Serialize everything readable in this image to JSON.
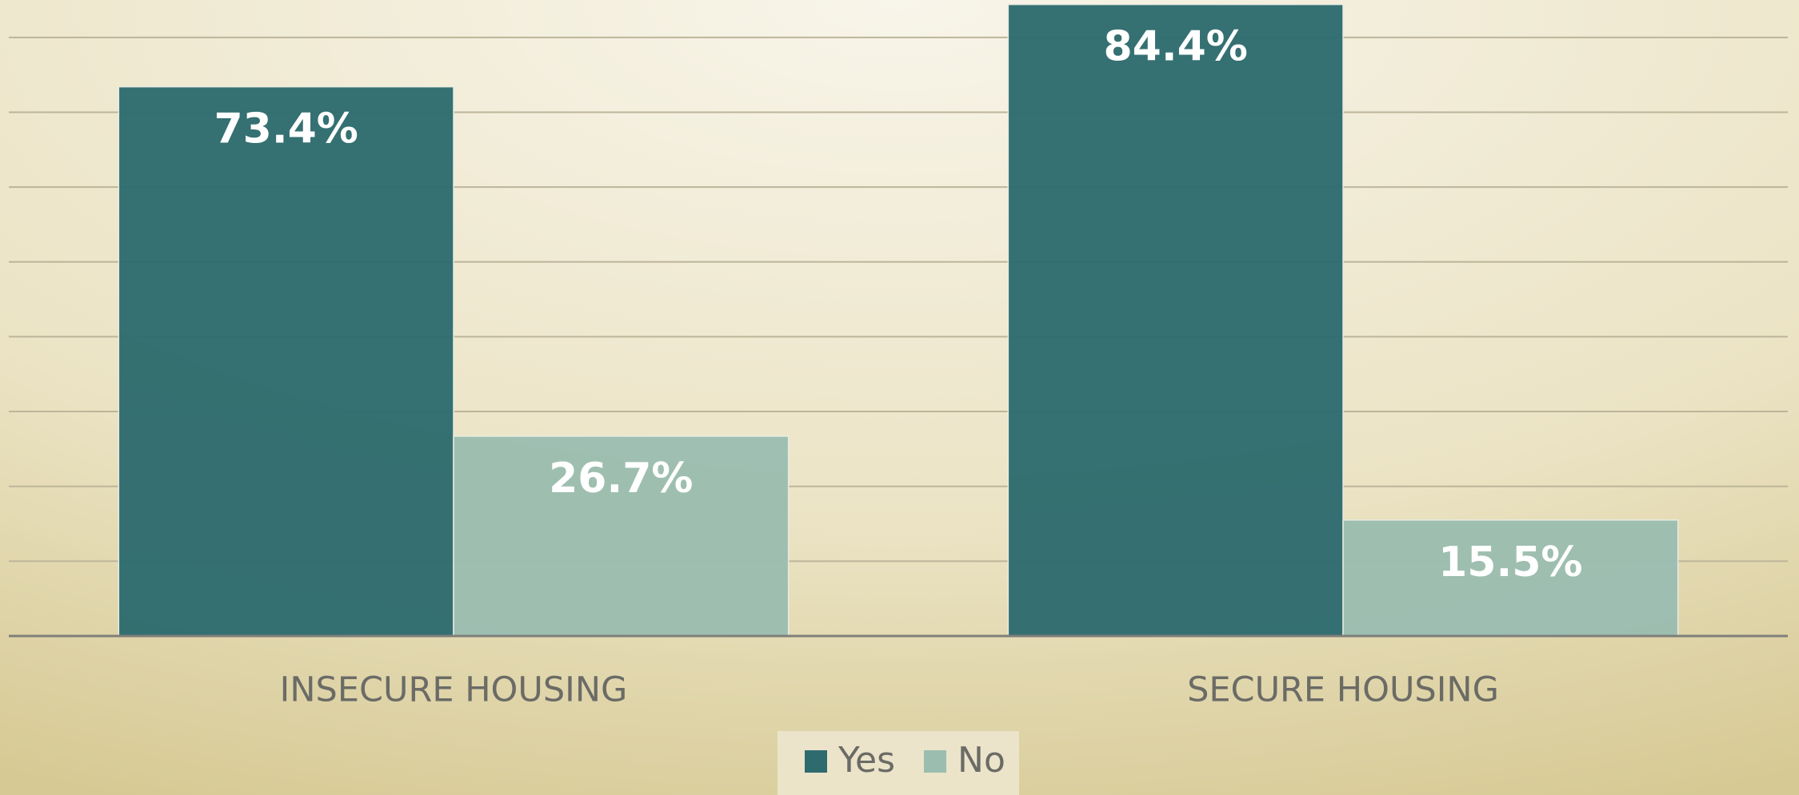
{
  "chart_data": {
    "type": "bar",
    "categories": [
      "INSECURE HOUSING",
      "SECURE HOUSING"
    ],
    "series": [
      {
        "name": "Yes",
        "color": "#2e6b6e",
        "values": [
          73.4,
          84.4
        ],
        "value_labels": [
          "73.4%",
          "84.4%"
        ]
      },
      {
        "name": "No",
        "color": "#9bbdb0",
        "values": [
          26.7,
          15.5
        ],
        "value_labels": [
          "26.7%",
          "15.5%"
        ]
      }
    ],
    "ylim": [
      0,
      85
    ],
    "yticks": [
      0,
      10,
      20,
      30,
      40,
      50,
      60,
      70,
      80
    ],
    "grid": true,
    "legend": "bottom"
  }
}
